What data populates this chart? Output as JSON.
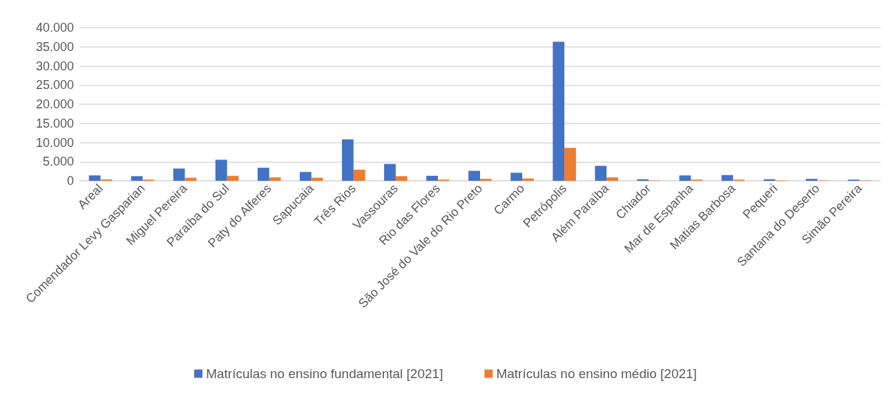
{
  "chart_data": {
    "type": "bar",
    "categories": [
      "Areal",
      "Comendador Levy Gasparian",
      "Miguel Pereira",
      "Paraíba do Sul",
      "Paty do Alferes",
      "Sapucaia",
      "Três Rios",
      "Vassouras",
      "Rio das Flores",
      "São José do Vale do Rio Preto",
      "Carmo",
      "Petrópolis",
      "Além Paraíba",
      "Chiador",
      "Mar de Espanha",
      "Matias Barbosa",
      "Pequeri",
      "Santana do Deserto",
      "Simão Pereira"
    ],
    "series": [
      {
        "name": "Matrículas no ensino fundamental [2021]",
        "color": "#4472c4",
        "values": [
          1400,
          1200,
          3200,
          5500,
          3400,
          2300,
          10800,
          4400,
          1300,
          2600,
          2100,
          36300,
          3900,
          400,
          1400,
          1500,
          400,
          500,
          300
        ]
      },
      {
        "name": "Matrículas no ensino médio [2021]",
        "color": "#ed7d31",
        "values": [
          350,
          300,
          800,
          1300,
          900,
          800,
          2900,
          1200,
          300,
          500,
          600,
          8600,
          900,
          100,
          300,
          300,
          100,
          100,
          100
        ]
      }
    ],
    "ylim": [
      0,
      40000
    ],
    "yticks": [
      {
        "value": 0,
        "label": "0"
      },
      {
        "value": 5000,
        "label": "5.000"
      },
      {
        "value": 10000,
        "label": "10.000"
      },
      {
        "value": 15000,
        "label": "15.000"
      },
      {
        "value": 20000,
        "label": "20.000"
      },
      {
        "value": 25000,
        "label": "25.000"
      },
      {
        "value": 30000,
        "label": "30.000"
      },
      {
        "value": 35000,
        "label": "35.000"
      },
      {
        "value": 40000,
        "label": "40.000"
      }
    ],
    "grid": "y",
    "legend": "bottom"
  }
}
